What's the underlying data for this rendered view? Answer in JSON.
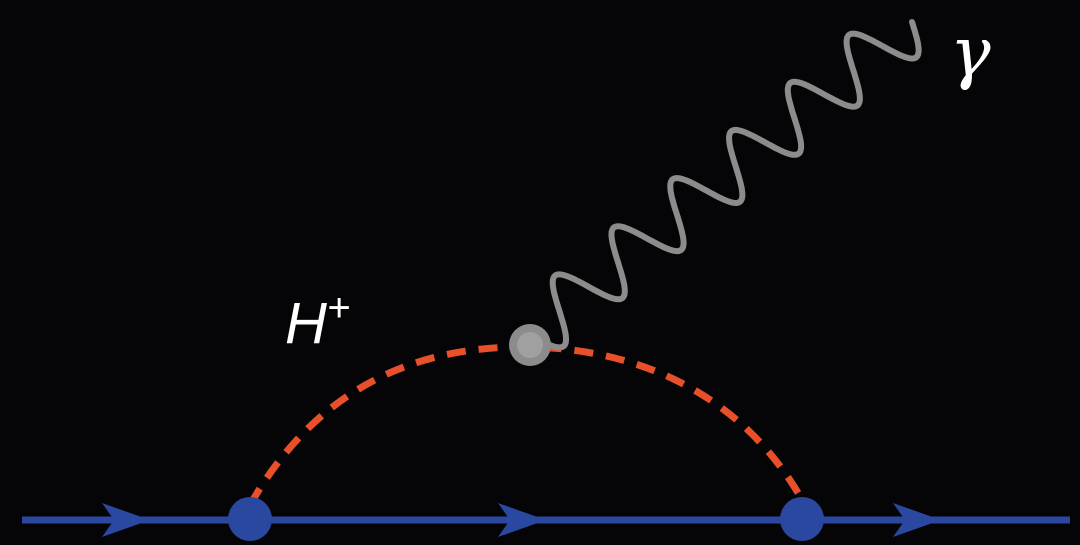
{
  "diagram": {
    "higgs_label": {
      "base": "H",
      "superscript": "+"
    },
    "photon_label": "γ",
    "colors": {
      "background": "#050507",
      "fermion_line": "#2a48a0",
      "fermion_vertex": "#2a48a0",
      "higgs_propagator": "#e8502a",
      "photon_line": "#8c8c8c",
      "photon_vertex": "#8c8c8c",
      "label": "#ffffff"
    },
    "elements": {
      "fermion_line": "incoming-fermion-line",
      "higgs_propagator": "charged-higgs-dashed-propagator",
      "photon": "outgoing-photon-wavy-line"
    }
  }
}
